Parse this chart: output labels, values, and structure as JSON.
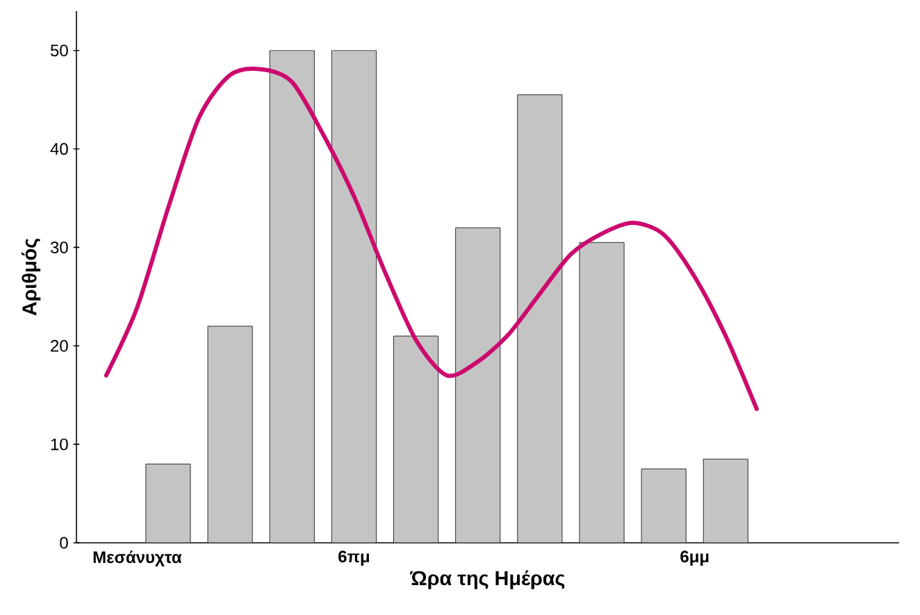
{
  "chart_data": {
    "type": "bar",
    "xlabel": "Ώρα της Ημέρας",
    "ylabel": "Αριθμός",
    "categories": [
      null,
      "Μεσάνυχτα",
      null,
      null,
      null,
      null,
      null,
      null,
      "6πμ",
      null,
      null,
      null,
      null,
      null,
      null,
      null,
      null,
      null,
      null,
      "6μμ",
      null,
      null,
      null,
      null,
      null,
      null
    ],
    "ylim": [
      0,
      54
    ],
    "yticks": [
      0,
      10,
      20,
      30,
      40,
      50
    ],
    "series": [
      {
        "color": "#c4c4c4",
        "values": [
          null,
          null,
          8,
          null,
          22,
          null,
          50,
          null,
          50,
          null,
          21,
          null,
          32,
          null,
          45.5,
          null,
          30.5,
          null,
          7.5,
          null,
          8.5,
          null,
          null,
          null,
          null,
          null
        ]
      },
      {
        "type": "line",
        "color": "#cc0a6e",
        "values": [
          17,
          23.9,
          34,
          43.2,
          47.5,
          48.1,
          46.8,
          41.5,
          35.2,
          27.5,
          20.6,
          17,
          18.4,
          21.2,
          25.3,
          29.3,
          31.4,
          32.5,
          31.3,
          27,
          21,
          13.6,
          null,
          null,
          null,
          null
        ]
      }
    ]
  }
}
